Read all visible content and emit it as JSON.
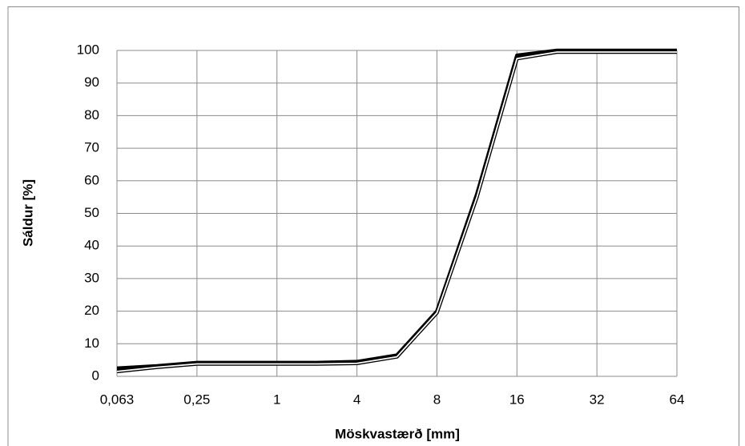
{
  "chart_data": {
    "type": "line",
    "x_label": "Möskvastærð [mm]",
    "y_label": "Sáldur [%]",
    "categories": [
      "0,063",
      null,
      "0,25",
      null,
      "1",
      null,
      "4",
      null,
      "8",
      null,
      "16",
      null,
      "32",
      null,
      "64"
    ],
    "series": [
      {
        "color": "#000000",
        "style": "solid",
        "values": [
          2.5,
          3.2,
          4.2,
          4.2,
          4.2,
          4.2,
          4.5,
          6.5,
          20,
          56,
          98.5,
          100,
          100,
          100,
          100
        ]
      },
      {
        "color": "#000000",
        "style": "outlined",
        "values": [
          1.5,
          2.8,
          3.8,
          3.8,
          3.8,
          3.8,
          4,
          6,
          19.5,
          55,
          97.5,
          99.5,
          99.5,
          99.5,
          99.5
        ]
      }
    ],
    "ylim": [
      0,
      100
    ],
    "yticks": [
      0,
      10,
      20,
      30,
      40,
      50,
      60,
      70,
      80,
      90,
      100
    ],
    "grid": true
  }
}
